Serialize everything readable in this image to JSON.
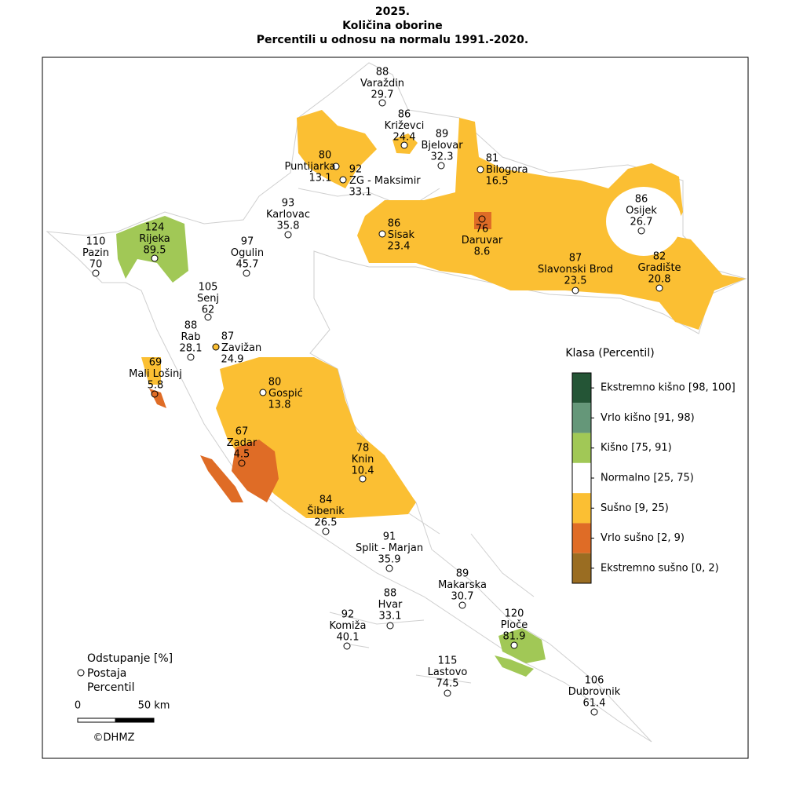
{
  "header": {
    "title": [
      "2025.",
      "Količina oborine",
      "Percentili u odnosu na normalu 1991.-2020."
    ]
  },
  "stations": [
    {
      "deviation": "88",
      "name": "Varaždin",
      "percentile": "29.7"
    },
    {
      "deviation": "86",
      "name": "Križevci",
      "percentile": "24.4"
    },
    {
      "deviation": "89",
      "name": "Bjelovar",
      "percentile": "32.3"
    },
    {
      "deviation": "80",
      "name": "Puntijarka",
      "percentile": "13.1"
    },
    {
      "deviation": "92",
      "name": "ZG - Maksimir",
      "percentile": "33.1"
    },
    {
      "deviation": "81",
      "name": "Bilogora",
      "percentile": "16.5"
    },
    {
      "deviation": "93",
      "name": "Karlovac",
      "percentile": "35.8"
    },
    {
      "deviation": "86",
      "name": "Osijek",
      "percentile": "26.7"
    },
    {
      "deviation": "86",
      "name": "Sisak",
      "percentile": "23.4"
    },
    {
      "deviation": "76",
      "name": "Daruvar",
      "percentile": "8.6"
    },
    {
      "deviation": "124",
      "name": "Rijeka",
      "percentile": "89.5"
    },
    {
      "deviation": "110",
      "name": "Pazin",
      "percentile": "70"
    },
    {
      "deviation": "97",
      "name": "Ogulin",
      "percentile": "45.7"
    },
    {
      "deviation": "87",
      "name": "Slavonski Brod",
      "percentile": "23.5"
    },
    {
      "deviation": "82",
      "name": "Gradište",
      "percentile": "20.8"
    },
    {
      "deviation": "105",
      "name": "Senj",
      "percentile": "62"
    },
    {
      "deviation": "88",
      "name": "Rab",
      "percentile": "28.1"
    },
    {
      "deviation": "87",
      "name": "Zavižan",
      "percentile": "24.9"
    },
    {
      "deviation": "69",
      "name": "Mali Lošinj",
      "percentile": "5.8"
    },
    {
      "deviation": "80",
      "name": "Gospić",
      "percentile": "13.8"
    },
    {
      "deviation": "67",
      "name": "Zadar",
      "percentile": "4.5"
    },
    {
      "deviation": "78",
      "name": "Knin",
      "percentile": "10.4"
    },
    {
      "deviation": "84",
      "name": "Šibenik",
      "percentile": "26.5"
    },
    {
      "deviation": "91",
      "name": "Split - Marjan",
      "percentile": "35.9"
    },
    {
      "deviation": "89",
      "name": "Makarska",
      "percentile": "30.7"
    },
    {
      "deviation": "88",
      "name": "Hvar",
      "percentile": "33.1"
    },
    {
      "deviation": "120",
      "name": "Ploče",
      "percentile": "81.9"
    },
    {
      "deviation": "92",
      "name": "Komiža",
      "percentile": "40.1"
    },
    {
      "deviation": "115",
      "name": "Lastovo",
      "percentile": "74.5"
    },
    {
      "deviation": "106",
      "name": "Dubrovnik",
      "percentile": "61.4"
    }
  ],
  "legend": {
    "title": "Klasa (Percentil)",
    "classes": [
      {
        "label": "Ekstremno kišno [98, 100]",
        "color": "#245536"
      },
      {
        "label": "Vrlo kišno [91, 98)",
        "color": "#659779"
      },
      {
        "label": "Kišno [75, 91)",
        "color": "#a1c856"
      },
      {
        "label": "Normalno [25, 75)",
        "color": "#ffffff"
      },
      {
        "label": "Sušno [9, 25)",
        "color": "#fbbf33"
      },
      {
        "label": "Vrlo sušno [2, 9)",
        "color": "#df6c26"
      },
      {
        "label": "Ekstremno sušno [0, 2)",
        "color": "#9a6d22"
      }
    ]
  },
  "key": {
    "lines": [
      "Odstupanje [%]",
      "Postaja",
      "Percentil"
    ]
  },
  "scale": {
    "start": "0",
    "end": "50 km"
  },
  "copyright": "©DHMZ"
}
